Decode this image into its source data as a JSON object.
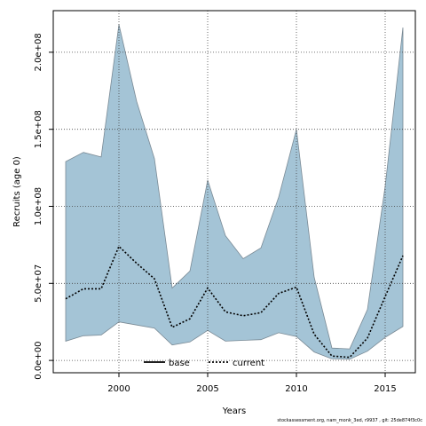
{
  "chart_data": {
    "type": "area",
    "xlabel": "Years",
    "ylabel": "Recruits (age 0)",
    "xlim": [
      1996.3,
      2016.7
    ],
    "ylim": [
      -8000000,
      227000000
    ],
    "x_ticks": [
      2000,
      2005,
      2010,
      2015
    ],
    "x_tick_labels": [
      "2000",
      "2005",
      "2010",
      "2015"
    ],
    "y_ticks": [
      0,
      50000000,
      100000000,
      150000000,
      200000000
    ],
    "y_tick_labels": [
      "0.0e+00",
      "5.0e+07",
      "1.0e+08",
      "1.5e+08",
      "2.0e+08"
    ],
    "grid": true,
    "legend_position": "bottom",
    "colors": {
      "band_fill": "#a4c4d6",
      "band_edge": "#7a8a95",
      "line": "#000000",
      "grid": "#444444"
    },
    "x": [
      1997,
      1998,
      1999,
      2000,
      2001,
      2002,
      2003,
      2004,
      2005,
      2006,
      2007,
      2008,
      2009,
      2010,
      2011,
      2012,
      2013,
      2014,
      2015,
      2016
    ],
    "band": {
      "upper": [
        129000000,
        135000000,
        132000000,
        218000000,
        168000000,
        131000000,
        47000000,
        58000000,
        117000000,
        81000000,
        66000000,
        73000000,
        106000000,
        150000000,
        54000000,
        8000000,
        7500000,
        33000000,
        113000000,
        216000000
      ],
      "lower": [
        12500000,
        16000000,
        16500000,
        25000000,
        23000000,
        21000000,
        10000000,
        12000000,
        19500000,
        12500000,
        13000000,
        13500000,
        18000000,
        15500000,
        5500000,
        1000000,
        800000,
        6000000,
        15000000,
        22000000
      ]
    },
    "series": [
      {
        "name": "current",
        "style": "dotted",
        "values": [
          40000000,
          46500000,
          46500000,
          74000000,
          63000000,
          53000000,
          21500000,
          27000000,
          47000000,
          31500000,
          29000000,
          31000000,
          43500000,
          47500000,
          17000000,
          2800000,
          2000000,
          14500000,
          41500000,
          68000000
        ]
      }
    ],
    "legend": [
      {
        "label": "base",
        "style": "solid"
      },
      {
        "label": "current",
        "style": "dotted"
      }
    ]
  },
  "footer": "stockassessment.org, nam_monk_3ed, r9937 , git: 25de874f3c0c"
}
